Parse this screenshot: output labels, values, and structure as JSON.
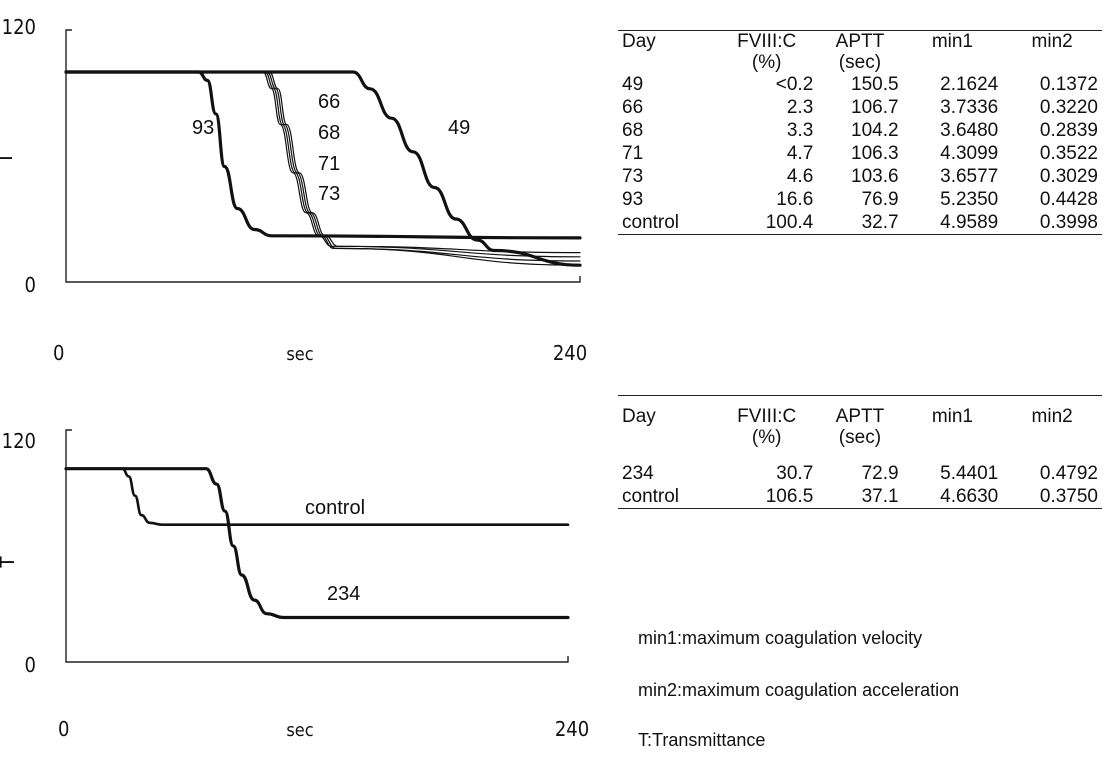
{
  "chart_data": [
    {
      "type": "line",
      "ylabel": "T",
      "xlabel": "sec",
      "xlim": [
        0,
        240
      ],
      "ylim": [
        0,
        120
      ],
      "xticks": [
        "0",
        "240"
      ],
      "yticks": [
        "0",
        "120"
      ],
      "series": [
        {
          "name": "93",
          "x": [
            0,
            62,
            66,
            70,
            74,
            80,
            88,
            96,
            240
          ],
          "y": [
            100,
            100,
            96,
            80,
            55,
            35,
            25,
            22,
            21
          ]
        },
        {
          "name": "66",
          "x": [
            0,
            92,
            96,
            100,
            106,
            112,
            118,
            124,
            240
          ],
          "y": [
            100,
            100,
            92,
            75,
            52,
            33,
            22,
            17,
            12
          ]
        },
        {
          "name": "68",
          "x": [
            0,
            93,
            97,
            101,
            107,
            113,
            119,
            125,
            240
          ],
          "y": [
            100,
            100,
            92,
            75,
            52,
            33,
            22,
            16,
            10
          ]
        },
        {
          "name": "71",
          "x": [
            0,
            94,
            98,
            102,
            108,
            114,
            120,
            126,
            240
          ],
          "y": [
            100,
            100,
            92,
            75,
            52,
            33,
            22,
            16,
            8
          ]
        },
        {
          "name": "73",
          "x": [
            0,
            95,
            99,
            103,
            109,
            115,
            121,
            127,
            240
          ],
          "y": [
            100,
            100,
            92,
            75,
            52,
            33,
            22,
            17,
            14
          ]
        },
        {
          "name": "49",
          "x": [
            0,
            134,
            142,
            152,
            162,
            172,
            182,
            192,
            200,
            240
          ],
          "y": [
            100,
            100,
            92,
            78,
            62,
            45,
            30,
            20,
            15,
            8
          ]
        }
      ],
      "labels": [
        "93",
        "66",
        "68",
        "71",
        "73",
        "49"
      ]
    },
    {
      "type": "line",
      "ylabel": "T",
      "xlabel": "sec",
      "xlim": [
        0,
        240
      ],
      "ylim": [
        0,
        120
      ],
      "xticks": [
        "0",
        "240"
      ],
      "yticks": [
        "0",
        "120"
      ],
      "series": [
        {
          "name": "control",
          "x": [
            0,
            27,
            30,
            33,
            36,
            40,
            46,
            240
          ],
          "y": [
            100,
            100,
            96,
            86,
            76,
            72,
            71,
            71
          ]
        },
        {
          "name": "234",
          "x": [
            0,
            67,
            72,
            76,
            80,
            84,
            90,
            96,
            104,
            240
          ],
          "y": [
            100,
            100,
            92,
            78,
            60,
            45,
            32,
            25,
            23,
            23
          ]
        }
      ],
      "labels": [
        "control",
        "234"
      ]
    }
  ],
  "table1": {
    "headers": [
      [
        "Day",
        ""
      ],
      [
        "FVIII:C",
        "(%)"
      ],
      [
        "APTT",
        "(sec)"
      ],
      [
        "min1",
        ""
      ],
      [
        "min2",
        ""
      ]
    ],
    "rows": [
      [
        "49",
        "<0.2",
        "150.5",
        "2.1624",
        "0.1372"
      ],
      [
        "66",
        "2.3",
        "106.7",
        "3.7336",
        "0.3220"
      ],
      [
        "68",
        "3.3",
        "104.2",
        "3.6480",
        "0.2839"
      ],
      [
        "71",
        "4.7",
        "106.3",
        "4.3099",
        "0.3522"
      ],
      [
        "73",
        "4.6",
        "103.6",
        "3.6577",
        "0.3029"
      ],
      [
        "93",
        "16.6",
        "76.9",
        "5.2350",
        "0.4428"
      ],
      [
        "control",
        "100.4",
        "32.7",
        "4.9589",
        "0.3998"
      ]
    ]
  },
  "table2": {
    "headers": [
      [
        "Day",
        ""
      ],
      [
        "FVIII:C",
        "(%)"
      ],
      [
        "APTT",
        "(sec)"
      ],
      [
        "min1",
        ""
      ],
      [
        "min2",
        ""
      ]
    ],
    "rows": [
      [
        "234",
        "30.7",
        "72.9",
        "5.4401",
        "0.4792"
      ],
      [
        "control",
        "106.5",
        "37.1",
        "4.6630",
        "0.3750"
      ]
    ]
  },
  "notes": [
    "min1:maximum coagulation velocity",
    "min2:maximum coagulation acceleration",
    "T:Transmittance"
  ]
}
